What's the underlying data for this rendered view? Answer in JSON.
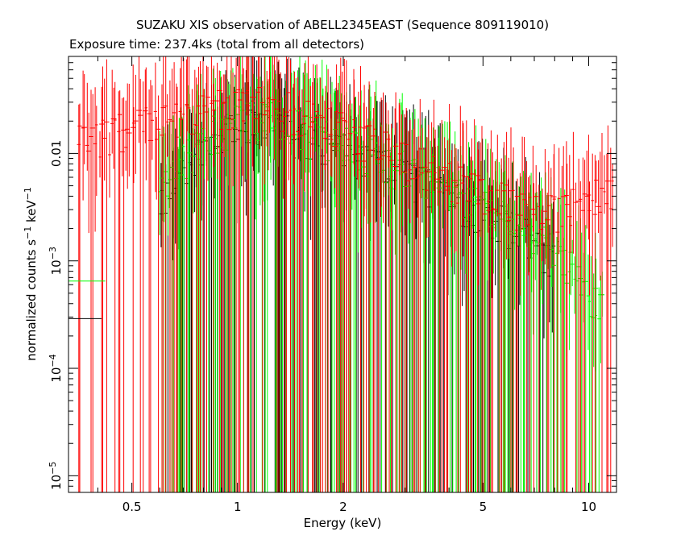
{
  "header": {
    "title": "SUZAKU XIS observation of ABELL2345EAST (Sequence 809119010)",
    "subtitle": "Exposure time: 237.4ks (total from all detectors)"
  },
  "chart_data": {
    "type": "scatter",
    "title": "SUZAKU XIS observation of ABELL2345EAST (Sequence 809119010)",
    "subtitle": "Exposure time: 237.4ks (total from all detectors)",
    "xlabel": "Energy (keV)",
    "ylabel": "normalized counts s^-1 keV^-1",
    "x_scale": "log",
    "y_scale": "log",
    "xlim": [
      0.33,
      12.0
    ],
    "ylim": [
      7e-06,
      0.08
    ],
    "x_ticks": [
      {
        "value": 0.5,
        "label": "0.5"
      },
      {
        "value": 1,
        "label": "1"
      },
      {
        "value": 2,
        "label": "2"
      },
      {
        "value": 5,
        "label": "5"
      },
      {
        "value": 10,
        "label": "10"
      }
    ],
    "y_ticks": [
      {
        "value": 1e-05,
        "base": "10",
        "exp": "−5"
      },
      {
        "value": 0.0001,
        "base": "10",
        "exp": "−4"
      },
      {
        "value": 0.001,
        "base": "10",
        "exp": "−3"
      },
      {
        "value": 0.01,
        "label": "0.01"
      }
    ],
    "series": [
      {
        "color": "#ff0000",
        "x": [
          0.35,
          0.45,
          0.55,
          0.65,
          0.75,
          0.85,
          0.95,
          1.05,
          1.15,
          1.3,
          1.5,
          1.7,
          1.9,
          2.2,
          2.5,
          2.8,
          3.2,
          3.6,
          4.0,
          4.5,
          5.0,
          5.5,
          6.0,
          6.5,
          7.0,
          7.5,
          8.0,
          8.5,
          9.0,
          10.0,
          11.0,
          11.8
        ],
        "y": [
          0.012,
          0.015,
          0.018,
          0.02,
          0.022,
          0.025,
          0.027,
          0.028,
          0.028,
          0.027,
          0.024,
          0.02,
          0.017,
          0.014,
          0.012,
          0.0095,
          0.008,
          0.0068,
          0.0058,
          0.005,
          0.0043,
          0.0038,
          0.0034,
          0.003,
          0.0028,
          0.0027,
          0.0028,
          0.003,
          0.0032,
          0.0036,
          0.004,
          0.0042
        ]
      },
      {
        "color": "#00ff00",
        "x": [
          0.6,
          0.7,
          0.8,
          0.9,
          1.0,
          1.1,
          1.2,
          1.3,
          1.5,
          1.7,
          1.9,
          2.2,
          2.5,
          2.8,
          3.2,
          3.6,
          4.0,
          4.5,
          5.0,
          5.5,
          6.0,
          6.5,
          7.0,
          7.5,
          8.0,
          9.0,
          10.0,
          11.0
        ],
        "y": [
          0.004,
          0.008,
          0.013,
          0.017,
          0.02,
          0.021,
          0.021,
          0.02,
          0.018,
          0.015,
          0.013,
          0.011,
          0.0092,
          0.0076,
          0.0064,
          0.0054,
          0.0046,
          0.0039,
          0.0033,
          0.0028,
          0.0023,
          0.002,
          0.0017,
          0.0014,
          0.0011,
          0.0008,
          0.0005,
          0.00035
        ]
      },
      {
        "color": "#000000",
        "x": [
          0.6,
          0.7,
          0.8,
          0.9,
          1.0,
          1.1,
          1.2,
          1.3,
          1.5,
          1.7,
          1.9,
          2.2,
          2.5,
          2.8,
          3.2,
          3.6,
          4.0,
          4.5,
          5.0,
          5.5,
          6.0,
          6.5,
          7.0,
          7.5,
          8.0
        ],
        "y": [
          0.003,
          0.006,
          0.01,
          0.014,
          0.016,
          0.017,
          0.017,
          0.016,
          0.014,
          0.012,
          0.011,
          0.009,
          0.0076,
          0.0064,
          0.0054,
          0.0046,
          0.0039,
          0.0033,
          0.0028,
          0.0024,
          0.002,
          0.0017,
          0.0015,
          0.0012,
          0.001
        ]
      }
    ]
  }
}
